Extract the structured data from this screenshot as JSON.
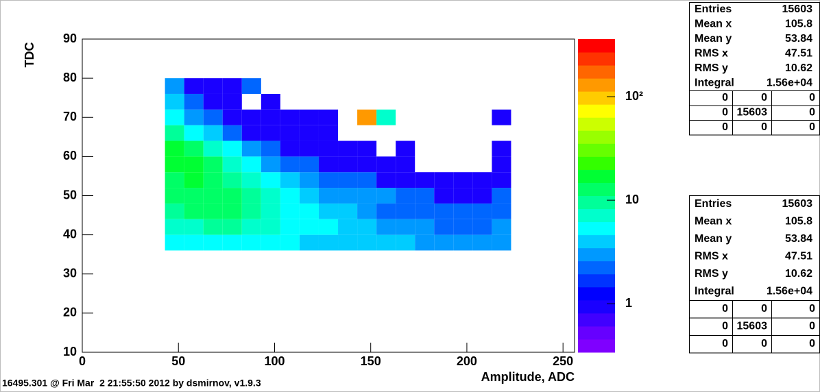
{
  "chart_data": {
    "type": "heatmap",
    "xlabel": "Amplitude, ADC",
    "ylabel": "TDC",
    "xlim": [
      0,
      256
    ],
    "xticks": [
      0,
      50,
      100,
      150,
      200,
      250
    ],
    "ylim": [
      10,
      90
    ],
    "yticks": [
      10,
      20,
      30,
      40,
      50,
      60,
      70,
      80,
      90
    ],
    "zlim": [
      0.34,
      360
    ],
    "zlog": true,
    "zticks": [
      1,
      10,
      {
        "value": 100,
        "label": "10²"
      }
    ],
    "xbins": [
      43,
      53,
      63,
      73,
      83,
      93,
      103,
      113,
      123,
      133,
      143,
      153,
      163,
      173,
      183,
      193,
      203,
      213,
      223
    ],
    "ybins": [
      36,
      40,
      44,
      48,
      52,
      56,
      60,
      64,
      68,
      72,
      76,
      80
    ],
    "z": [
      [
        6,
        6,
        6,
        6,
        5,
        5,
        5,
        4,
        4,
        4,
        4,
        4,
        4,
        3,
        3,
        3,
        3,
        3
      ],
      [
        8,
        8,
        9,
        9,
        8,
        7,
        6,
        5,
        5,
        4,
        4,
        3,
        3,
        3,
        2,
        2,
        2,
        3
      ],
      [
        10,
        12,
        12,
        12,
        10,
        8,
        6,
        5,
        4,
        4,
        3,
        2,
        2,
        2,
        2,
        2,
        2,
        2
      ],
      [
        12,
        14,
        14,
        13,
        10,
        8,
        6,
        4,
        3,
        3,
        3,
        3,
        2,
        2,
        1,
        1,
        1,
        2
      ],
      [
        14,
        15,
        13,
        10,
        7,
        5,
        4,
        3,
        2,
        2,
        2,
        1,
        1,
        1,
        1,
        1,
        1,
        1
      ],
      [
        16,
        15,
        12,
        8,
        5,
        3,
        2,
        2,
        1,
        1,
        1,
        1,
        1,
        null,
        null,
        null,
        null,
        1
      ],
      [
        15,
        12,
        8,
        5,
        3,
        2,
        1,
        1,
        1,
        1,
        1,
        null,
        1,
        null,
        null,
        null,
        null,
        1
      ],
      [
        10,
        6,
        4,
        2,
        1,
        1,
        1,
        1,
        1,
        null,
        null,
        null,
        null,
        null,
        null,
        null,
        null,
        null
      ],
      [
        6,
        3,
        2,
        1,
        1,
        1,
        1,
        1,
        1,
        null,
        150,
        8,
        null,
        null,
        null,
        null,
        null,
        1
      ],
      [
        4,
        2,
        1,
        1,
        null,
        1,
        null,
        null,
        null,
        null,
        null,
        null,
        null,
        null,
        null,
        null,
        null,
        null
      ],
      [
        3,
        1,
        1,
        1,
        2,
        null,
        null,
        null,
        null,
        null,
        null,
        null,
        null,
        null,
        null,
        null,
        null,
        null
      ]
    ],
    "palette": [
      "#7f00ff",
      "#6600ff",
      "#4000ff",
      "#1a00ff",
      "#0000ff",
      "#0033ff",
      "#0066ff",
      "#0099ff",
      "#00ccff",
      "#00ffff",
      "#00ffcc",
      "#00ff99",
      "#00ff66",
      "#00ff33",
      "#33ff00",
      "#66ff00",
      "#99ff00",
      "#ccff00",
      "#ffff00",
      "#ffcc00",
      "#ff9900",
      "#ff6600",
      "#ff3300",
      "#ff0000"
    ]
  },
  "stats_boxes": [
    {
      "rows": [
        [
          "Entries",
          15603
        ],
        [
          "Mean x",
          105.8
        ],
        [
          "Mean y",
          53.84
        ],
        [
          "RMS x",
          47.51
        ],
        [
          "RMS y",
          10.62
        ],
        [
          "Integral",
          "1.56e+04"
        ]
      ],
      "grid": [
        [
          0,
          0,
          0
        ],
        [
          0,
          15603,
          0
        ],
        [
          0,
          0,
          0
        ]
      ]
    },
    {
      "rows": [
        [
          "Entries",
          15603
        ],
        [
          "Mean x",
          105.8
        ],
        [
          "Mean y",
          53.84
        ],
        [
          "RMS x",
          47.51
        ],
        [
          "RMS y",
          10.62
        ],
        [
          "Integral",
          "1.56e+04"
        ]
      ],
      "grid": [
        [
          0,
          0,
          0
        ],
        [
          0,
          15603,
          0
        ],
        [
          0,
          0,
          0
        ]
      ]
    }
  ],
  "footer": "16495.301 @ Fri Mar  2 21:55:50 2012 by dsmirnov, v1.9.3"
}
